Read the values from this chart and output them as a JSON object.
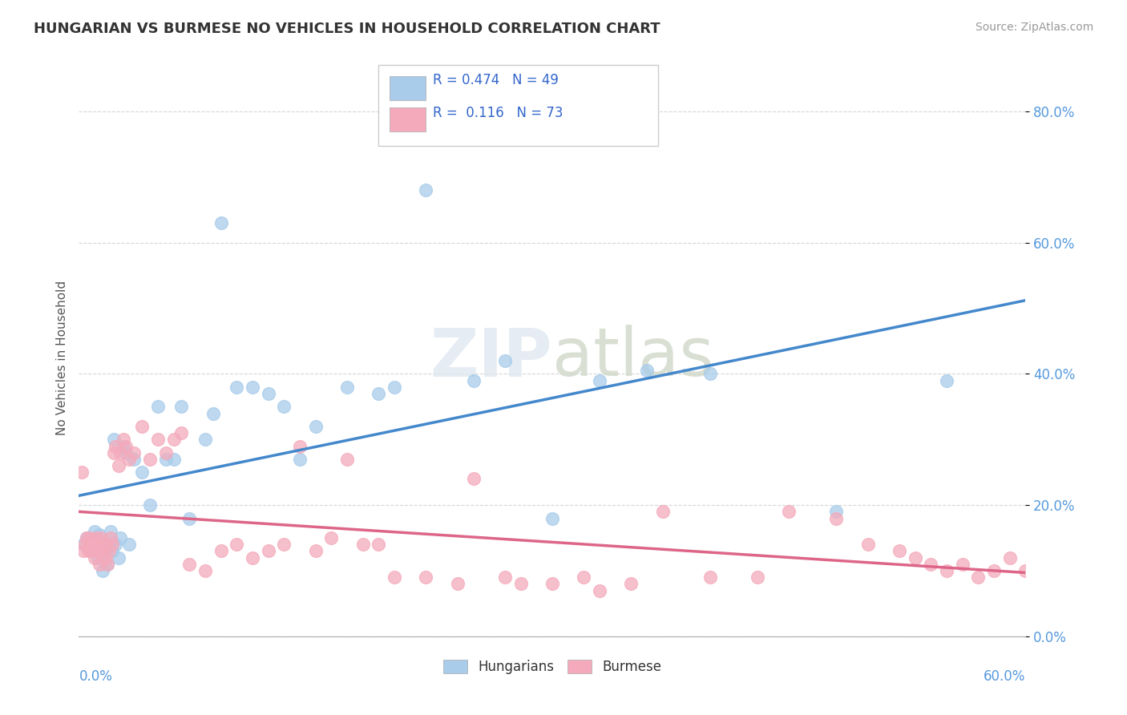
{
  "title": "HUNGARIAN VS BURMESE NO VEHICLES IN HOUSEHOLD CORRELATION CHART",
  "source": "Source: ZipAtlas.com",
  "ylabel": "No Vehicles in Household",
  "xlim": [
    0.0,
    60.0
  ],
  "ylim": [
    0.0,
    85.0
  ],
  "yticks": [
    0.0,
    20.0,
    40.0,
    60.0,
    80.0
  ],
  "legend1_r": "0.474",
  "legend1_n": "49",
  "legend2_r": "0.116",
  "legend2_n": "73",
  "blue_color": "#A8CCEA",
  "pink_color": "#F4AABB",
  "blue_line_color": "#4488CC",
  "pink_line_color": "#DD6688",
  "background_color": "#FFFFFF",
  "watermark_zip": "ZIP",
  "watermark_atlas": "atlas",
  "blue_x": [
    0.3,
    0.5,
    0.8,
    1.0,
    1.2,
    1.3,
    1.5,
    1.5,
    1.7,
    1.8,
    1.9,
    2.0,
    2.1,
    2.2,
    2.3,
    2.5,
    2.6,
    2.8,
    3.0,
    3.2,
    3.5,
    4.0,
    4.5,
    5.0,
    5.5,
    6.0,
    6.5,
    7.0,
    8.0,
    8.5,
    9.0,
    10.0,
    11.0,
    12.0,
    13.0,
    14.0,
    15.0,
    17.0,
    19.0,
    20.0,
    22.0,
    25.0,
    27.0,
    30.0,
    33.0,
    36.0,
    40.0,
    48.0,
    55.0
  ],
  "blue_y": [
    14.0,
    15.0,
    13.0,
    16.0,
    12.0,
    15.5,
    10.0,
    14.0,
    13.0,
    11.0,
    14.0,
    16.0,
    13.0,
    30.0,
    14.0,
    12.0,
    15.0,
    29.0,
    28.0,
    14.0,
    27.0,
    25.0,
    20.0,
    35.0,
    27.0,
    27.0,
    35.0,
    18.0,
    30.0,
    34.0,
    63.0,
    38.0,
    38.0,
    37.0,
    35.0,
    27.0,
    32.0,
    38.0,
    37.0,
    38.0,
    68.0,
    39.0,
    42.0,
    18.0,
    39.0,
    40.5,
    40.0,
    19.0,
    39.0
  ],
  "pink_x": [
    0.2,
    0.3,
    0.4,
    0.5,
    0.6,
    0.7,
    0.8,
    0.9,
    1.0,
    1.1,
    1.2,
    1.3,
    1.4,
    1.5,
    1.6,
    1.7,
    1.8,
    1.9,
    2.0,
    2.1,
    2.2,
    2.3,
    2.5,
    2.6,
    2.8,
    3.0,
    3.2,
    3.5,
    4.0,
    4.5,
    5.0,
    5.5,
    6.0,
    6.5,
    7.0,
    8.0,
    9.0,
    10.0,
    11.0,
    12.0,
    13.0,
    14.0,
    15.0,
    16.0,
    17.0,
    18.0,
    19.0,
    20.0,
    22.0,
    24.0,
    25.0,
    27.0,
    28.0,
    30.0,
    32.0,
    33.0,
    35.0,
    37.0,
    40.0,
    43.0,
    45.0,
    48.0,
    50.0,
    52.0,
    53.0,
    54.0,
    55.0,
    56.0,
    57.0,
    58.0,
    59.0,
    60.0,
    61.0
  ],
  "pink_y": [
    25.0,
    13.0,
    14.0,
    15.0,
    13.0,
    15.0,
    13.0,
    14.0,
    12.0,
    15.0,
    13.0,
    11.0,
    15.0,
    13.0,
    14.0,
    12.0,
    11.0,
    13.0,
    15.0,
    14.0,
    28.0,
    29.0,
    26.0,
    28.0,
    30.0,
    29.0,
    27.0,
    28.0,
    32.0,
    27.0,
    30.0,
    28.0,
    30.0,
    31.0,
    11.0,
    10.0,
    13.0,
    14.0,
    12.0,
    13.0,
    14.0,
    29.0,
    13.0,
    15.0,
    27.0,
    14.0,
    14.0,
    9.0,
    9.0,
    8.0,
    24.0,
    9.0,
    8.0,
    8.0,
    9.0,
    7.0,
    8.0,
    19.0,
    9.0,
    9.0,
    19.0,
    18.0,
    14.0,
    13.0,
    12.0,
    11.0,
    10.0,
    11.0,
    9.0,
    10.0,
    12.0,
    10.0,
    11.0
  ]
}
